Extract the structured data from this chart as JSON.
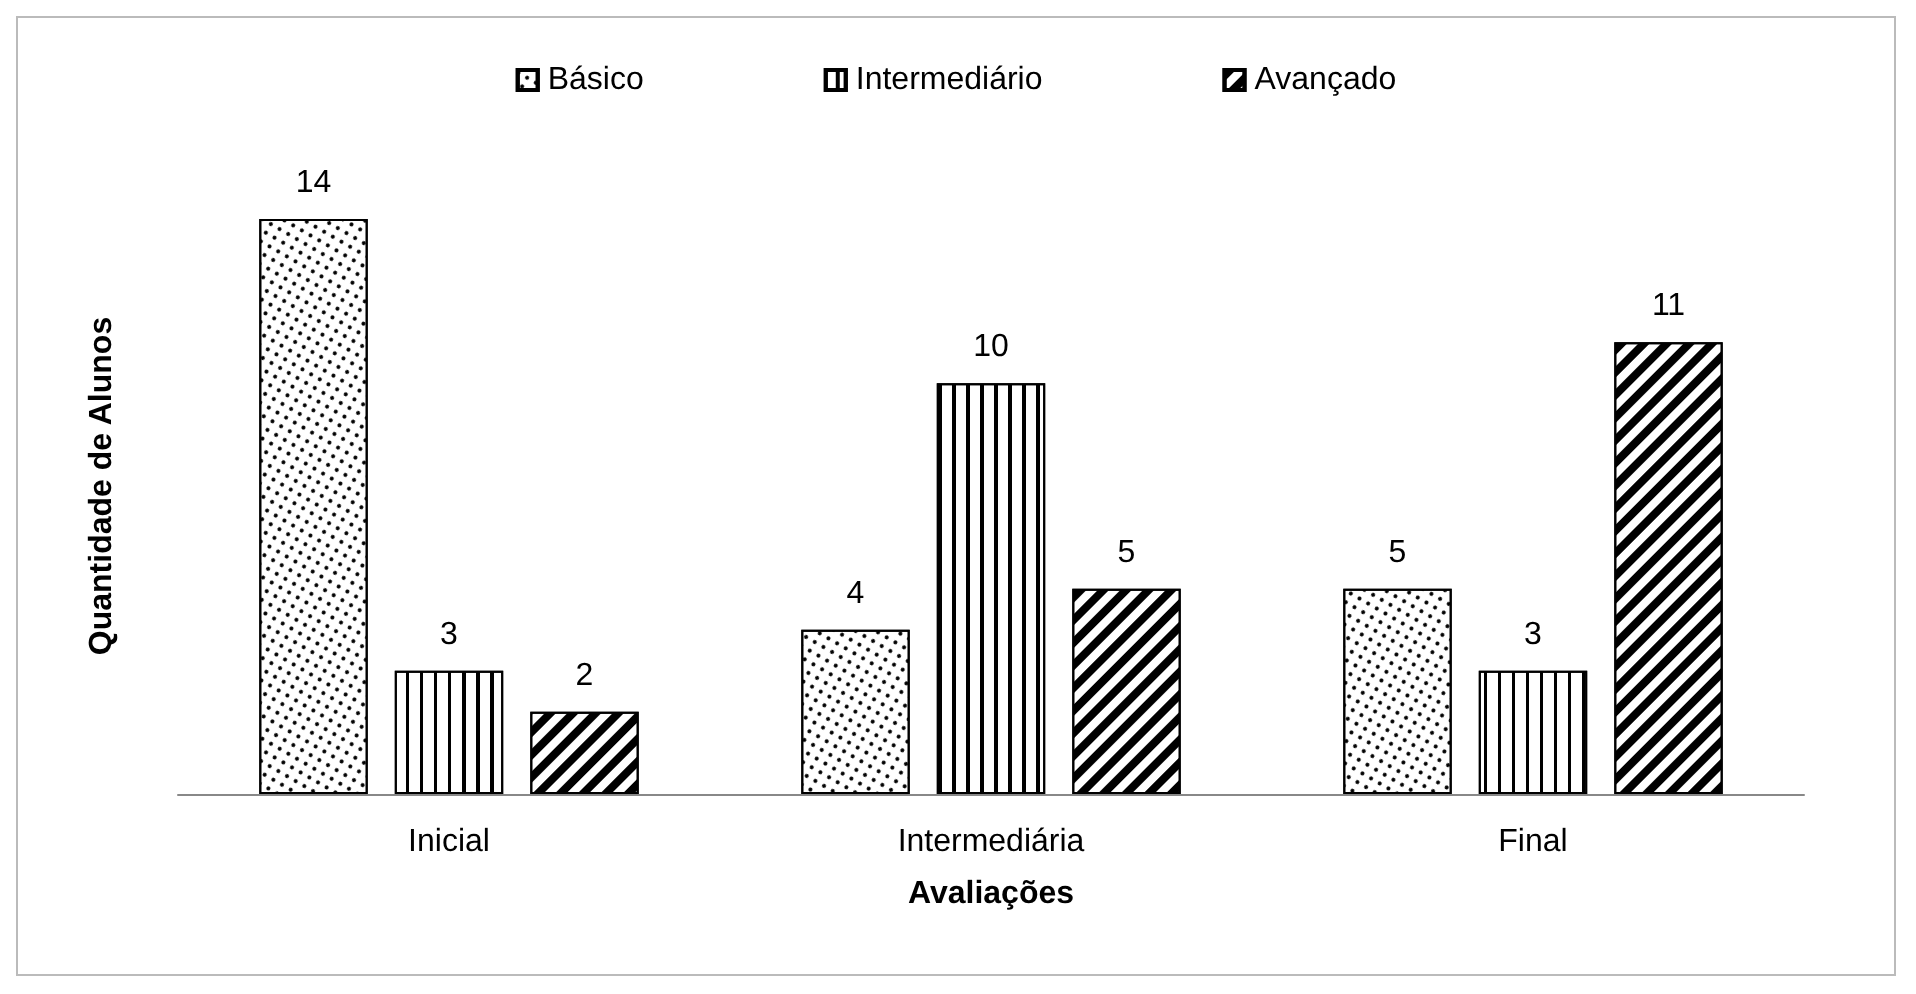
{
  "chart_data": {
    "type": "bar",
    "xlabel": "Avaliações",
    "ylabel": "Quantidade de Alunos",
    "categories": [
      "Inicial",
      "Intermediária",
      "Final"
    ],
    "series": [
      {
        "name": "Básico",
        "color": "#000000",
        "values": [
          14,
          4,
          5
        ]
      },
      {
        "name": "Intermediário",
        "color": "#000000",
        "values": [
          3,
          10,
          3
        ]
      },
      {
        "name": "Avançado",
        "color": "#000000",
        "values": [
          2,
          5,
          11
        ]
      }
    ],
    "data_labels": true,
    "legend": "top",
    "grid": false
  }
}
